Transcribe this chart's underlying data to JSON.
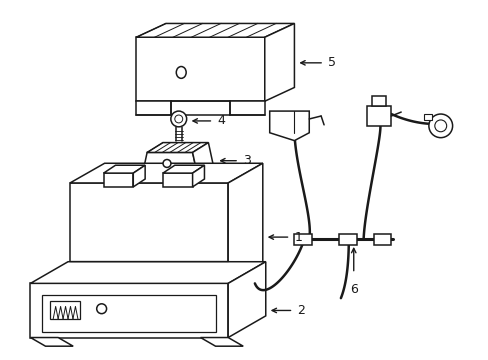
{
  "background_color": "#ffffff",
  "line_color": "#1a1a1a",
  "line_width": 1.1
}
